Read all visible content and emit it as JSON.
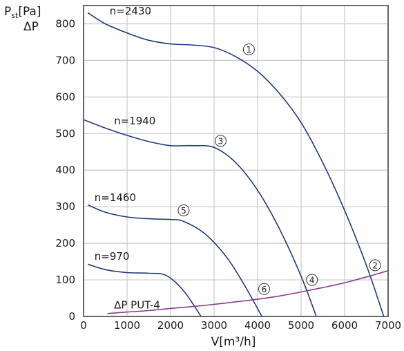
{
  "chart_data": {
    "type": "line",
    "title": "",
    "ylabel": {
      "main": "P",
      "sub": "st",
      "unit": "[Pa]",
      "second_line": "ΔP"
    },
    "xlabel": "V[m³/h]",
    "xlim": [
      0,
      7000
    ],
    "ylim": [
      0,
      850
    ],
    "x_ticks": [
      0,
      1000,
      2000,
      3000,
      4000,
      5000,
      6000,
      7000
    ],
    "y_ticks": [
      0,
      100,
      200,
      300,
      400,
      500,
      600,
      700,
      800
    ],
    "grid": true,
    "series": [
      {
        "name": "n=2430",
        "marker": "1",
        "color": "#1f3a7a",
        "points": [
          [
            100,
            830
          ],
          [
            500,
            800
          ],
          [
            1000,
            775
          ],
          [
            1500,
            755
          ],
          [
            2000,
            745
          ],
          [
            2500,
            742
          ],
          [
            3000,
            735
          ],
          [
            3500,
            710
          ],
          [
            4000,
            670
          ],
          [
            4500,
            610
          ],
          [
            5000,
            530
          ],
          [
            5500,
            420
          ],
          [
            6000,
            290
          ],
          [
            6500,
            140
          ],
          [
            6900,
            0
          ]
        ]
      },
      {
        "name": "n=1940",
        "marker": "3",
        "color": "#1f3a7a",
        "points": [
          [
            0,
            538
          ],
          [
            500,
            515
          ],
          [
            1000,
            495
          ],
          [
            1500,
            478
          ],
          [
            2000,
            467
          ],
          [
            2500,
            467
          ],
          [
            3000,
            462
          ],
          [
            3500,
            420
          ],
          [
            4000,
            345
          ],
          [
            4500,
            240
          ],
          [
            5000,
            110
          ],
          [
            5350,
            0
          ]
        ]
      },
      {
        "name": "n=1460",
        "marker": "5",
        "color": "#1f3a7a",
        "points": [
          [
            100,
            305
          ],
          [
            500,
            285
          ],
          [
            1000,
            272
          ],
          [
            1500,
            267
          ],
          [
            2000,
            265
          ],
          [
            2300,
            260
          ],
          [
            2800,
            225
          ],
          [
            3300,
            160
          ],
          [
            3700,
            85
          ],
          [
            4100,
            0
          ]
        ]
      },
      {
        "name": "n=970",
        "marker": "7",
        "color": "#1f3a7a",
        "points": [
          [
            100,
            143
          ],
          [
            500,
            128
          ],
          [
            1000,
            120
          ],
          [
            1500,
            118
          ],
          [
            1900,
            112
          ],
          [
            2300,
            70
          ],
          [
            2700,
            0
          ]
        ]
      },
      {
        "name": "ΔP PUT-4",
        "marker": "",
        "color": "#8a3a8f",
        "points": [
          [
            550,
            8
          ],
          [
            1000,
            12
          ],
          [
            1500,
            16
          ],
          [
            2000,
            22
          ],
          [
            2500,
            27
          ],
          [
            3000,
            33
          ],
          [
            3500,
            40
          ],
          [
            4000,
            47
          ],
          [
            4500,
            56
          ],
          [
            5000,
            67
          ],
          [
            5500,
            79
          ],
          [
            6000,
            92
          ],
          [
            6500,
            108
          ],
          [
            7000,
            125
          ]
        ]
      }
    ],
    "annotations": [
      {
        "text": "n=2430",
        "x": 600,
        "y": 825
      },
      {
        "text": "n=1940",
        "x": 700,
        "y": 525
      },
      {
        "text": "n=1460",
        "x": 250,
        "y": 315
      },
      {
        "text": "n=970",
        "x": 250,
        "y": 155
      },
      {
        "text": "ΔP PUT-4",
        "x": 700,
        "y": 22,
        "color": "#8a3a8f"
      }
    ],
    "markers": [
      {
        "text": "1",
        "x": 3800,
        "y": 730
      },
      {
        "text": "2",
        "x": 6700,
        "y": 140
      },
      {
        "text": "3",
        "x": 3150,
        "y": 480
      },
      {
        "text": "4",
        "x": 5250,
        "y": 100
      },
      {
        "text": "5",
        "x": 2300,
        "y": 290
      },
      {
        "text": "6",
        "x": 4150,
        "y": 75
      }
    ]
  }
}
